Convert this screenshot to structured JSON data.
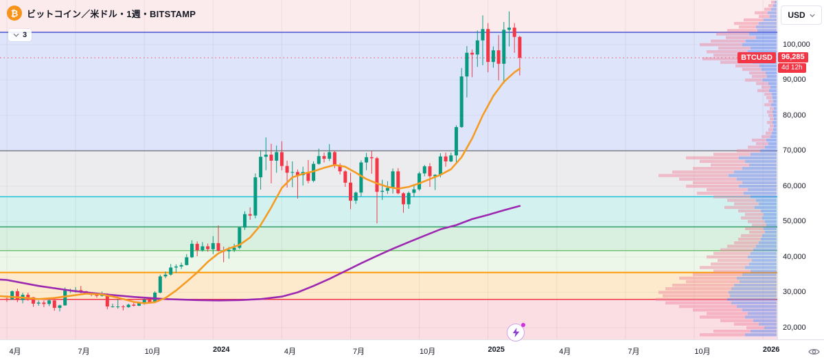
{
  "header": {
    "symbol_title": "ビットコイン／米ドル・1週・BITSTAMP",
    "indicator_count": "3",
    "currency": "USD"
  },
  "price_labels": {
    "symbol_badge": "BTCUSD",
    "last_price": "96,285",
    "countdown": "4d 12h"
  },
  "colors": {
    "up": "#089981",
    "down": "#f23645",
    "ma_fast": "#f59b22",
    "ma_slow": "#9c27b0",
    "bitcoin_orange": "#f7931a",
    "vp_sell": "#ef8aa2",
    "vp_buy": "#6b8bea"
  },
  "chart_data": {
    "type": "candlestick",
    "symbol": "BTCUSD",
    "interval": "1週",
    "exchange": "BITSTAMP",
    "last_price": 96285,
    "y_axis": {
      "min": 16500,
      "max": 112620,
      "ticks": [
        100000,
        90000,
        80000,
        70000,
        60000,
        50000,
        40000,
        30000,
        20000
      ]
    },
    "x_ticks": [
      {
        "label": "4月",
        "i": 0
      },
      {
        "label": "7月",
        "i": 13
      },
      {
        "label": "10月",
        "i": 26
      },
      {
        "label": "2024",
        "i": 39
      },
      {
        "label": "4月",
        "i": 52
      },
      {
        "label": "7月",
        "i": 65
      },
      {
        "label": "10月",
        "i": 78
      },
      {
        "label": "2025",
        "i": 91
      },
      {
        "label": "4月",
        "i": 104
      },
      {
        "label": "7月",
        "i": 117
      },
      {
        "label": "10月",
        "i": 130
      },
      {
        "label": "2026",
        "i": 143
      }
    ],
    "zones": [
      {
        "from": 112620,
        "to": 103500,
        "fill": "#fcebed"
      },
      {
        "from": 103500,
        "to": 70000,
        "fill": "#dee4f9"
      },
      {
        "from": 70000,
        "to": 57000,
        "fill": "#ecebee"
      },
      {
        "from": 57000,
        "to": 48500,
        "fill": "#d3f1ee"
      },
      {
        "from": 48500,
        "to": 41800,
        "fill": "#d9efdf"
      },
      {
        "from": 41800,
        "to": 35600,
        "fill": "#ecf6e9"
      },
      {
        "from": 35600,
        "to": 28000,
        "fill": "#fdeacd"
      },
      {
        "from": 28000,
        "to": 16500,
        "fill": "#fbdde4"
      }
    ],
    "levels": [
      {
        "price": 103500,
        "color": "#4753cf",
        "width": 1.5
      },
      {
        "price": 70000,
        "color": "#7b7f8a",
        "width": 1.5
      },
      {
        "price": 57000,
        "color": "#23c2d8",
        "width": 1.5
      },
      {
        "price": 48500,
        "color": "#2f9e68",
        "width": 1.5
      },
      {
        "price": 41800,
        "color": "#72c272",
        "width": 1.5
      },
      {
        "price": 35600,
        "color": "#ff9800",
        "width": 2
      },
      {
        "price": 28000,
        "color": "#f23645",
        "width": 1.5
      }
    ],
    "candles": [
      [
        28200,
        29100,
        27300,
        28000
      ],
      [
        28000,
        30500,
        27800,
        30300
      ],
      [
        30300,
        31000,
        27200,
        27800
      ],
      [
        27800,
        29900,
        26900,
        29300
      ],
      [
        29300,
        29900,
        27600,
        28600
      ],
      [
        28600,
        28700,
        25900,
        26800
      ],
      [
        26800,
        27700,
        26200,
        27100
      ],
      [
        27100,
        27700,
        25800,
        26700
      ],
      [
        26700,
        28500,
        26100,
        27700
      ],
      [
        27700,
        27800,
        24800,
        25600
      ],
      [
        25600,
        26500,
        24600,
        26300
      ],
      [
        26300,
        31400,
        26200,
        30500
      ],
      [
        30500,
        31000,
        29800,
        30500
      ],
      [
        30500,
        31500,
        29900,
        30600
      ],
      [
        30600,
        31800,
        29700,
        30300
      ],
      [
        30300,
        30400,
        29500,
        29800
      ],
      [
        29800,
        29900,
        28900,
        29300
      ],
      [
        29300,
        29700,
        28500,
        29000
      ],
      [
        29000,
        30200,
        28800,
        29400
      ],
      [
        29400,
        29700,
        25200,
        26000
      ],
      [
        26000,
        26800,
        25700,
        26000
      ],
      [
        26000,
        28100,
        25400,
        26000
      ],
      [
        26000,
        26400,
        24900,
        25800
      ],
      [
        25800,
        26800,
        25600,
        26500
      ],
      [
        26500,
        27400,
        26000,
        26200
      ],
      [
        26200,
        27200,
        26100,
        26900
      ],
      [
        26900,
        28500,
        26500,
        27900
      ],
      [
        27900,
        28000,
        26800,
        27150
      ],
      [
        27150,
        30300,
        27000,
        29900
      ],
      [
        29900,
        35000,
        29700,
        34500
      ],
      [
        34500,
        35900,
        34000,
        35000
      ],
      [
        35000,
        38000,
        34700,
        37000
      ],
      [
        37000,
        37900,
        35500,
        37300
      ],
      [
        37300,
        38400,
        36600,
        37700
      ],
      [
        37700,
        40800,
        37600,
        39900
      ],
      [
        39900,
        44700,
        39700,
        43700
      ],
      [
        43700,
        44400,
        40200,
        41900
      ],
      [
        41900,
        44200,
        41500,
        43000
      ],
      [
        43000,
        43800,
        41500,
        42200
      ],
      [
        42200,
        45900,
        40800,
        43900
      ],
      [
        43900,
        48900,
        41500,
        41700
      ],
      [
        41700,
        42900,
        38500,
        41600
      ],
      [
        41600,
        42800,
        39500,
        42000
      ],
      [
        42000,
        43700,
        41400,
        42600
      ],
      [
        42600,
        48600,
        42200,
        48300
      ],
      [
        48300,
        52900,
        47600,
        52100
      ],
      [
        52100,
        54000,
        50500,
        51700
      ],
      [
        51700,
        63600,
        50900,
        62500
      ],
      [
        62500,
        70200,
        59000,
        68300
      ],
      [
        68300,
        73800,
        64500,
        68900
      ],
      [
        68900,
        72000,
        60800,
        67200
      ],
      [
        67200,
        71500,
        63800,
        69600
      ],
      [
        69600,
        72700,
        64500,
        65700
      ],
      [
        65700,
        67200,
        59600,
        63800
      ],
      [
        63800,
        67000,
        59700,
        64000
      ],
      [
        64000,
        64700,
        56500,
        63100
      ],
      [
        63100,
        65500,
        60200,
        64000
      ],
      [
        64000,
        67400,
        60800,
        61500
      ],
      [
        61500,
        67000,
        61100,
        66300
      ],
      [
        66300,
        70600,
        66100,
        68500
      ],
      [
        68500,
        69500,
        66700,
        67750
      ],
      [
        67750,
        71900,
        67100,
        69600
      ],
      [
        69600,
        70000,
        65100,
        66000
      ],
      [
        66000,
        66500,
        63300,
        64200
      ],
      [
        64200,
        64500,
        59800,
        61000
      ],
      [
        61000,
        63800,
        53500,
        55900
      ],
      [
        55900,
        58500,
        55000,
        58200
      ],
      [
        58200,
        67300,
        57100,
        66700
      ],
      [
        66700,
        69400,
        64500,
        68200
      ],
      [
        68200,
        70000,
        63500,
        67900
      ],
      [
        67900,
        68300,
        49500,
        58400
      ],
      [
        58400,
        61800,
        56100,
        58700
      ],
      [
        58700,
        61400,
        57800,
        59500
      ],
      [
        59500,
        65000,
        57900,
        64200
      ],
      [
        64200,
        65100,
        57700,
        58000
      ],
      [
        58000,
        58300,
        52500,
        54900
      ],
      [
        54900,
        58500,
        53600,
        58100
      ],
      [
        58100,
        60600,
        56900,
        59100
      ],
      [
        59100,
        64100,
        58700,
        63600
      ],
      [
        63600,
        66000,
        62800,
        65600
      ],
      [
        65600,
        66500,
        59800,
        62800
      ],
      [
        62800,
        63400,
        58900,
        63200
      ],
      [
        63200,
        69300,
        62500,
        68400
      ],
      [
        68400,
        69500,
        65500,
        67000
      ],
      [
        67000,
        69500,
        66800,
        68700
      ],
      [
        68700,
        77200,
        66800,
        76700
      ],
      [
        76700,
        93400,
        76500,
        91000
      ],
      [
        91000,
        99600,
        85100,
        97700
      ],
      [
        97700,
        98600,
        90800,
        97200
      ],
      [
        97200,
        104000,
        93700,
        101200
      ],
      [
        101200,
        108300,
        94200,
        104400
      ],
      [
        104400,
        106100,
        92200,
        95100
      ],
      [
        95100,
        99500,
        93500,
        98400
      ],
      [
        98400,
        102700,
        89900,
        94600
      ],
      [
        94600,
        106400,
        89000,
        104200
      ],
      [
        104200,
        109400,
        99500,
        104800
      ],
      [
        104800,
        106100,
        97700,
        102200
      ],
      [
        102200,
        102500,
        91300,
        96285
      ]
    ],
    "ma_fast": [
      [
        -1.3,
        28900
      ],
      [
        0,
        28800
      ],
      [
        3,
        28500
      ],
      [
        6,
        28100
      ],
      [
        9,
        28400
      ],
      [
        12,
        29000
      ],
      [
        15,
        29600
      ],
      [
        18,
        29400
      ],
      [
        21,
        28500
      ],
      [
        24,
        27300
      ],
      [
        26,
        26900
      ],
      [
        28,
        27200
      ],
      [
        30,
        28400
      ],
      [
        32,
        30500
      ],
      [
        34,
        33000
      ],
      [
        36,
        35600
      ],
      [
        38,
        38600
      ],
      [
        40,
        41000
      ],
      [
        42,
        42400
      ],
      [
        44,
        43400
      ],
      [
        46,
        45500
      ],
      [
        48,
        49000
      ],
      [
        50,
        54000
      ],
      [
        52,
        59500
      ],
      [
        54,
        62500
      ],
      [
        56,
        63500
      ],
      [
        58,
        64200
      ],
      [
        60,
        65200
      ],
      [
        62,
        66000
      ],
      [
        64,
        65500
      ],
      [
        66,
        63800
      ],
      [
        68,
        62000
      ],
      [
        70,
        60800
      ],
      [
        72,
        59800
      ],
      [
        74,
        59300
      ],
      [
        76,
        59800
      ],
      [
        78,
        60800
      ],
      [
        80,
        62000
      ],
      [
        82,
        63200
      ],
      [
        84,
        64800
      ],
      [
        86,
        68200
      ],
      [
        88,
        73500
      ],
      [
        90,
        80000
      ],
      [
        92,
        85500
      ],
      [
        94,
        89500
      ],
      [
        96,
        92200
      ],
      [
        97,
        93200
      ]
    ],
    "ma_slow": [
      [
        -1.3,
        33600
      ],
      [
        0,
        33500
      ],
      [
        6,
        31800
      ],
      [
        12,
        30500
      ],
      [
        18,
        29500
      ],
      [
        24,
        28700
      ],
      [
        30,
        28100
      ],
      [
        36,
        27800
      ],
      [
        40,
        27700
      ],
      [
        44,
        27800
      ],
      [
        48,
        28100
      ],
      [
        52,
        28800
      ],
      [
        55,
        30000
      ],
      [
        58,
        31800
      ],
      [
        61,
        33800
      ],
      [
        64,
        36000
      ],
      [
        67,
        38200
      ],
      [
        70,
        40300
      ],
      [
        73,
        42300
      ],
      [
        76,
        44200
      ],
      [
        79,
        46000
      ],
      [
        82,
        47800
      ],
      [
        85,
        49000
      ],
      [
        88,
        50700
      ],
      [
        91,
        51900
      ],
      [
        94,
        53200
      ],
      [
        97,
        54400
      ]
    ],
    "volume_profile": [
      [
        112000,
        8,
        3
      ],
      [
        111000,
        12,
        5
      ],
      [
        110000,
        18,
        8
      ],
      [
        109000,
        32,
        13
      ],
      [
        108000,
        26,
        10
      ],
      [
        107000,
        48,
        19
      ],
      [
        106000,
        62,
        26
      ],
      [
        105000,
        55,
        30
      ],
      [
        104000,
        72,
        28
      ],
      [
        103000,
        88,
        40
      ],
      [
        102000,
        74,
        30
      ],
      [
        101000,
        96,
        45
      ],
      [
        100000,
        112,
        50
      ],
      [
        99000,
        85,
        38
      ],
      [
        98000,
        102,
        42
      ],
      [
        97000,
        92,
        48
      ],
      [
        96000,
        108,
        40
      ],
      [
        95000,
        82,
        35
      ],
      [
        94000,
        60,
        25
      ],
      [
        93000,
        50,
        22
      ],
      [
        92000,
        40,
        16
      ],
      [
        91000,
        36,
        14
      ],
      [
        90000,
        46,
        20
      ],
      [
        89000,
        30,
        12
      ],
      [
        88000,
        22,
        9
      ],
      [
        87000,
        28,
        11
      ],
      [
        86000,
        18,
        7
      ],
      [
        85000,
        15,
        6
      ],
      [
        84000,
        12,
        5
      ],
      [
        83000,
        18,
        8
      ],
      [
        82000,
        10,
        4
      ],
      [
        81000,
        14,
        6
      ],
      [
        80000,
        12,
        5
      ],
      [
        79000,
        10,
        4
      ],
      [
        78000,
        14,
        6
      ],
      [
        77000,
        10,
        4
      ],
      [
        76000,
        12,
        5
      ],
      [
        75000,
        16,
        7
      ],
      [
        74000,
        22,
        9
      ],
      [
        73000,
        36,
        15
      ],
      [
        72000,
        30,
        12
      ],
      [
        71000,
        42,
        17
      ],
      [
        70000,
        58,
        24
      ],
      [
        69000,
        92,
        38
      ],
      [
        68000,
        132,
        55
      ],
      [
        67000,
        112,
        46
      ],
      [
        66000,
        96,
        40
      ],
      [
        65000,
        122,
        50
      ],
      [
        64000,
        152,
        62
      ],
      [
        63000,
        172,
        70
      ],
      [
        62000,
        142,
        58
      ],
      [
        61000,
        122,
        50
      ],
      [
        60000,
        132,
        55
      ],
      [
        59000,
        102,
        42
      ],
      [
        58000,
        116,
        48
      ],
      [
        57000,
        92,
        38
      ],
      [
        56000,
        72,
        30
      ],
      [
        55000,
        62,
        26
      ],
      [
        54000,
        76,
        32
      ],
      [
        53000,
        56,
        23
      ],
      [
        52000,
        46,
        19
      ],
      [
        51000,
        52,
        21
      ],
      [
        50000,
        42,
        17
      ],
      [
        49000,
        36,
        15
      ],
      [
        48000,
        46,
        19
      ],
      [
        47000,
        40,
        17
      ],
      [
        46000,
        52,
        21
      ],
      [
        45000,
        56,
        23
      ],
      [
        44000,
        62,
        26
      ],
      [
        43000,
        72,
        30
      ],
      [
        42000,
        82,
        34
      ],
      [
        41000,
        92,
        38
      ],
      [
        40000,
        102,
        42
      ],
      [
        39000,
        86,
        36
      ],
      [
        38000,
        96,
        40
      ],
      [
        37000,
        112,
        46
      ],
      [
        36000,
        92,
        38
      ],
      [
        35000,
        122,
        50
      ],
      [
        34000,
        142,
        58
      ],
      [
        33000,
        132,
        54
      ],
      [
        32000,
        152,
        62
      ],
      [
        31000,
        162,
        66
      ],
      [
        30000,
        172,
        70
      ],
      [
        29000,
        166,
        68
      ],
      [
        28000,
        176,
        72
      ],
      [
        27000,
        162,
        66
      ],
      [
        26000,
        142,
        58
      ],
      [
        25000,
        122,
        50
      ],
      [
        24000,
        102,
        42
      ],
      [
        23000,
        112,
        46
      ],
      [
        22000,
        82,
        34
      ],
      [
        21000,
        62,
        26
      ],
      [
        20000,
        44,
        18
      ],
      [
        19000,
        92,
        38
      ],
      [
        18000,
        112,
        46
      ]
    ]
  }
}
